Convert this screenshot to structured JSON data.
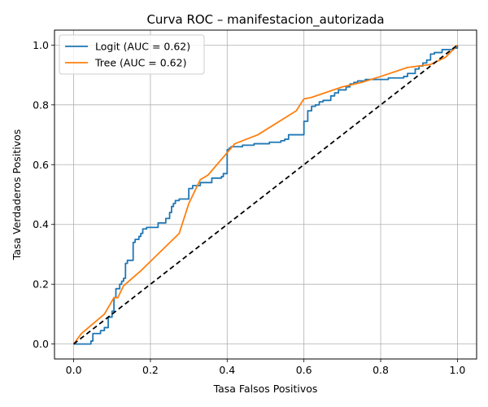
{
  "chart_data": {
    "type": "line",
    "title": "Curva ROC – manifestacion_autorizada",
    "xlabel": "Tasa Falsos Positivos",
    "ylabel": "Tasa Verdaderos Positivos",
    "xlim": [
      -0.05,
      1.05
    ],
    "ylim": [
      -0.05,
      1.05
    ],
    "xticks": [
      0.0,
      0.2,
      0.4,
      0.6,
      0.8,
      1.0
    ],
    "yticks": [
      0.0,
      0.2,
      0.4,
      0.6,
      0.8,
      1.0
    ],
    "xtick_labels": [
      "0.0",
      "0.2",
      "0.4",
      "0.6",
      "0.8",
      "1.0"
    ],
    "ytick_labels": [
      "0.0",
      "0.2",
      "0.4",
      "0.6",
      "0.8",
      "1.0"
    ],
    "grid": true,
    "legend_position": "top-left",
    "series": [
      {
        "name": "Logit (AUC = 0.62)",
        "color": "#1f77b4",
        "style": "step",
        "x": [
          0.0,
          0.045,
          0.05,
          0.07,
          0.08,
          0.09,
          0.1,
          0.105,
          0.11,
          0.12,
          0.125,
          0.13,
          0.135,
          0.14,
          0.155,
          0.16,
          0.17,
          0.175,
          0.18,
          0.19,
          0.2,
          0.22,
          0.24,
          0.25,
          0.255,
          0.26,
          0.265,
          0.275,
          0.3,
          0.31,
          0.32,
          0.33,
          0.36,
          0.385,
          0.39,
          0.4,
          0.405,
          0.41,
          0.44,
          0.47,
          0.51,
          0.54,
          0.55,
          0.56,
          0.6,
          0.61,
          0.62,
          0.63,
          0.64,
          0.65,
          0.67,
          0.68,
          0.69,
          0.71,
          0.72,
          0.73,
          0.74,
          0.76,
          0.82,
          0.86,
          0.87,
          0.89,
          0.9,
          0.91,
          0.92,
          0.93,
          0.94,
          0.96,
          0.99,
          1.0
        ],
        "y": [
          0.0,
          0.01,
          0.035,
          0.045,
          0.055,
          0.09,
          0.11,
          0.155,
          0.185,
          0.2,
          0.21,
          0.22,
          0.27,
          0.28,
          0.34,
          0.35,
          0.36,
          0.37,
          0.385,
          0.39,
          0.39,
          0.405,
          0.42,
          0.44,
          0.46,
          0.47,
          0.48,
          0.485,
          0.52,
          0.53,
          0.53,
          0.54,
          0.555,
          0.56,
          0.57,
          0.65,
          0.655,
          0.66,
          0.665,
          0.67,
          0.675,
          0.68,
          0.685,
          0.7,
          0.745,
          0.78,
          0.795,
          0.8,
          0.81,
          0.815,
          0.83,
          0.84,
          0.85,
          0.86,
          0.87,
          0.875,
          0.88,
          0.885,
          0.89,
          0.895,
          0.905,
          0.92,
          0.93,
          0.94,
          0.95,
          0.97,
          0.975,
          0.985,
          0.99,
          1.0
        ]
      },
      {
        "name": "Tree (AUC = 0.62)",
        "color": "#ff7f0e",
        "style": "line",
        "x": [
          0.0,
          0.02,
          0.08,
          0.105,
          0.115,
          0.13,
          0.175,
          0.275,
          0.3,
          0.33,
          0.35,
          0.42,
          0.48,
          0.58,
          0.6,
          0.62,
          0.7,
          0.75,
          0.8,
          0.87,
          0.93,
          0.97,
          1.0
        ],
        "y": [
          0.0,
          0.035,
          0.1,
          0.155,
          0.155,
          0.195,
          0.245,
          0.37,
          0.47,
          0.55,
          0.565,
          0.67,
          0.7,
          0.78,
          0.82,
          0.825,
          0.86,
          0.875,
          0.895,
          0.925,
          0.935,
          0.96,
          1.0
        ]
      },
      {
        "name": "",
        "color": "#000000",
        "style": "dashed",
        "x": [
          0.0,
          1.0
        ],
        "y": [
          0.0,
          1.0
        ]
      }
    ]
  }
}
